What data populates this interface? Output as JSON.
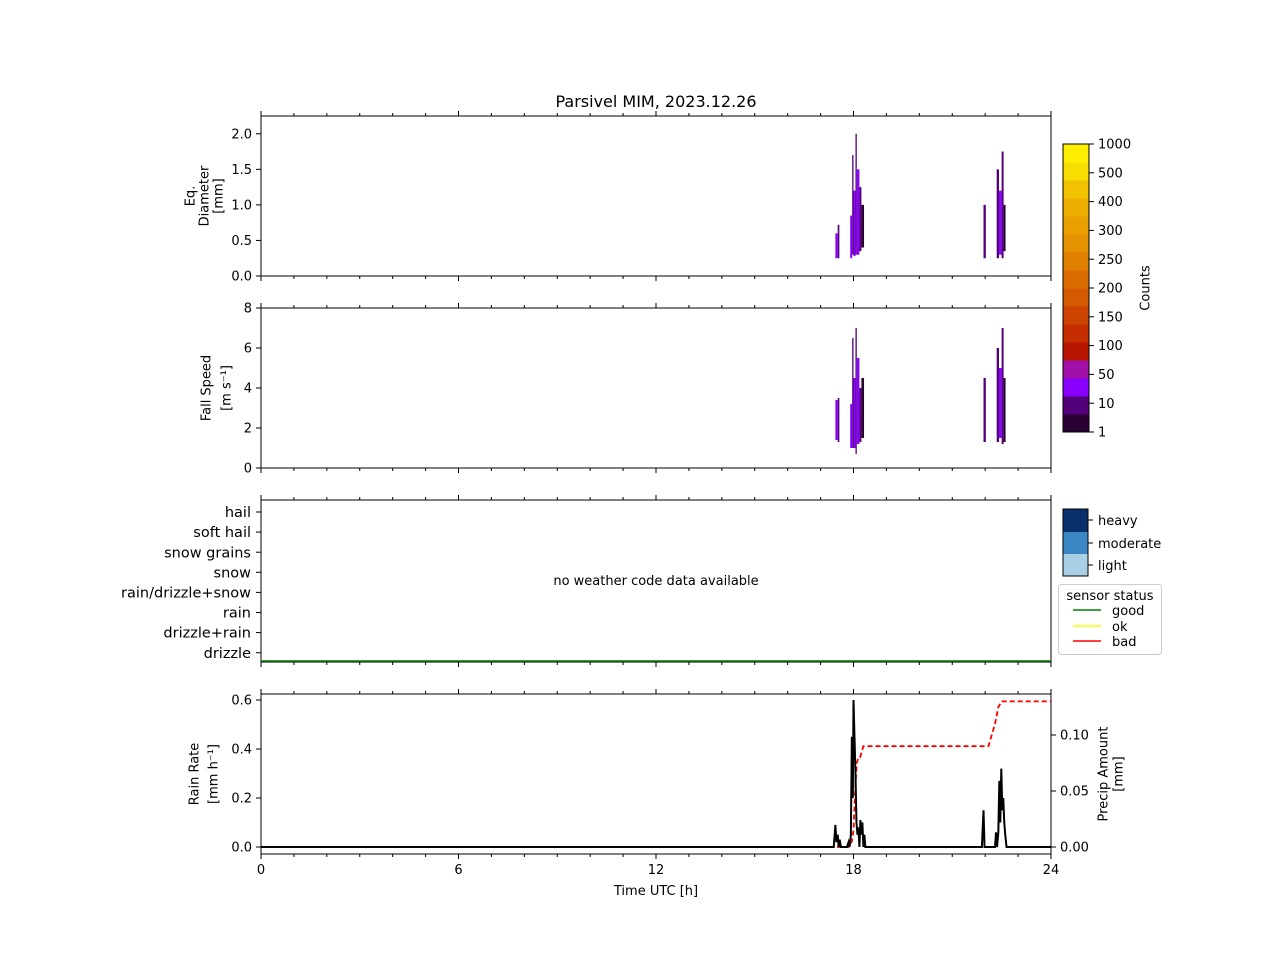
{
  "title": "Parsivel MIM, 2023.12.26",
  "xlabel": "Time UTC [h]",
  "colorbar": {
    "label": "Counts",
    "ticks": [
      "1",
      "10",
      "50",
      "100",
      "150",
      "200",
      "250",
      "300",
      "400",
      "500",
      "1000"
    ],
    "colors": [
      "#2a0033",
      "#52007a",
      "#8a00ff",
      "#a010a8",
      "#b81500",
      "#c42e00",
      "#cc4400",
      "#d45a00",
      "#db6c00",
      "#e07f00",
      "#e59200",
      "#ea9f00",
      "#eeb000",
      "#f2c200",
      "#f8dd00",
      "#ffee00"
    ]
  },
  "diameter_panel": {
    "ylabel": [
      "Eq.",
      "Diameter",
      "[mm]"
    ],
    "yticks": [
      "0.0",
      "0.5",
      "1.0",
      "1.5",
      "2.0"
    ]
  },
  "fallspeed_panel": {
    "ylabel": [
      "Fall Speed",
      "[m s⁻¹]"
    ],
    "yticks": [
      "0",
      "2",
      "4",
      "6",
      "8"
    ]
  },
  "weather_panel": {
    "categories": [
      "hail",
      "soft hail",
      "snow grains",
      "snow",
      "rain/drizzle+snow",
      "rain",
      "drizzle+rain",
      "drizzle"
    ],
    "message": "no weather code data available",
    "intensity_legend": [
      {
        "label": "heavy",
        "color": "#08306b"
      },
      {
        "label": "moderate",
        "color": "#3a87c4"
      },
      {
        "label": "light",
        "color": "#a8cfe4"
      }
    ],
    "sensor_legend": {
      "title": "sensor status",
      "items": [
        {
          "label": "good",
          "color": "#008000"
        },
        {
          "label": "ok",
          "color": "#ffff00"
        },
        {
          "label": "bad",
          "color": "#ff0000"
        }
      ]
    }
  },
  "rain_panel": {
    "ylabel_left": [
      "Rain Rate",
      "[mm h⁻¹]"
    ],
    "ylabel_right": [
      "Precip Amount",
      "[mm]"
    ],
    "yticks_left": [
      "0.0",
      "0.2",
      "0.4",
      "0.6"
    ],
    "yticks_right": [
      "0.00",
      "0.05",
      "0.10"
    ],
    "xticks": [
      "0",
      "6",
      "12",
      "18",
      "24"
    ]
  },
  "chart_data": [
    {
      "type": "heatmap",
      "name": "Eq. Diameter",
      "ylim": [
        0,
        2.25
      ],
      "xlim": [
        0,
        24
      ],
      "cells": [
        {
          "x0": 17.45,
          "x1": 17.52,
          "y0": 0.25,
          "y1": 0.6,
          "level": 2
        },
        {
          "x0": 17.52,
          "x1": 17.57,
          "y0": 0.25,
          "y1": 0.72,
          "level": 1
        },
        {
          "x0": 17.9,
          "x1": 17.96,
          "y0": 0.25,
          "y1": 0.85,
          "level": 2
        },
        {
          "x0": 17.96,
          "x1": 18.0,
          "y0": 0.3,
          "y1": 1.7,
          "level": 1
        },
        {
          "x0": 18.0,
          "x1": 18.06,
          "y0": 0.28,
          "y1": 1.2,
          "level": 2
        },
        {
          "x0": 18.06,
          "x1": 18.1,
          "y0": 0.3,
          "y1": 2.0,
          "level": 1
        },
        {
          "x0": 18.1,
          "x1": 18.18,
          "y0": 0.3,
          "y1": 1.5,
          "level": 2
        },
        {
          "x0": 18.18,
          "x1": 18.24,
          "y0": 0.35,
          "y1": 1.25,
          "level": 1
        },
        {
          "x0": 18.24,
          "x1": 18.32,
          "y0": 0.4,
          "y1": 1.0,
          "level": 0
        },
        {
          "x0": 21.95,
          "x1": 22.02,
          "y0": 0.25,
          "y1": 1.0,
          "level": 1
        },
        {
          "x0": 22.35,
          "x1": 22.42,
          "y0": 0.25,
          "y1": 1.5,
          "level": 1
        },
        {
          "x0": 22.42,
          "x1": 22.5,
          "y0": 0.3,
          "y1": 1.2,
          "level": 2
        },
        {
          "x0": 22.5,
          "x1": 22.56,
          "y0": 0.25,
          "y1": 1.75,
          "level": 1
        },
        {
          "x0": 22.56,
          "x1": 22.62,
          "y0": 0.35,
          "y1": 1.0,
          "level": 0
        }
      ]
    },
    {
      "type": "heatmap",
      "name": "Fall Speed",
      "ylim": [
        0,
        8
      ],
      "xlim": [
        0,
        24
      ],
      "cells": [
        {
          "x0": 17.45,
          "x1": 17.52,
          "y0": 1.4,
          "y1": 3.4,
          "level": 2
        },
        {
          "x0": 17.52,
          "x1": 17.57,
          "y0": 1.3,
          "y1": 3.5,
          "level": 1
        },
        {
          "x0": 17.9,
          "x1": 17.96,
          "y0": 1.0,
          "y1": 3.2,
          "level": 2
        },
        {
          "x0": 17.96,
          "x1": 18.0,
          "y0": 1.0,
          "y1": 6.5,
          "level": 1
        },
        {
          "x0": 18.0,
          "x1": 18.06,
          "y0": 1.0,
          "y1": 4.5,
          "level": 2
        },
        {
          "x0": 18.06,
          "x1": 18.1,
          "y0": 0.7,
          "y1": 7.0,
          "level": 1
        },
        {
          "x0": 18.1,
          "x1": 18.18,
          "y0": 1.2,
          "y1": 5.5,
          "level": 2
        },
        {
          "x0": 18.18,
          "x1": 18.24,
          "y0": 1.3,
          "y1": 4.0,
          "level": 1
        },
        {
          "x0": 18.24,
          "x1": 18.32,
          "y0": 1.5,
          "y1": 4.5,
          "level": 0
        },
        {
          "x0": 21.95,
          "x1": 22.02,
          "y0": 1.3,
          "y1": 4.5,
          "level": 1
        },
        {
          "x0": 22.35,
          "x1": 22.42,
          "y0": 1.3,
          "y1": 6.0,
          "level": 1
        },
        {
          "x0": 22.42,
          "x1": 22.5,
          "y0": 1.5,
          "y1": 5.0,
          "level": 2
        },
        {
          "x0": 22.5,
          "x1": 22.56,
          "y0": 1.2,
          "y1": 7.0,
          "level": 1
        },
        {
          "x0": 22.56,
          "x1": 22.62,
          "y0": 1.3,
          "y1": 4.5,
          "level": 0
        }
      ]
    },
    {
      "type": "line",
      "name": "Weather code",
      "series": [
        {
          "name": "good",
          "x": [
            0,
            24
          ],
          "y": [
            0,
            0
          ]
        }
      ]
    },
    {
      "type": "line",
      "name": "Rain rate and precip amount",
      "xlim": [
        0,
        24
      ],
      "ylim_left": [
        0,
        0.62
      ],
      "ylim_right": [
        0,
        0.13
      ],
      "series": [
        {
          "axis": "left",
          "style": "solid",
          "color": "#000000",
          "x": [
            0,
            17.4,
            17.45,
            17.48,
            17.52,
            17.55,
            17.58,
            17.62,
            17.7,
            17.8,
            17.85,
            17.88,
            17.92,
            17.95,
            17.98,
            18.0,
            18.03,
            18.06,
            18.09,
            18.12,
            18.15,
            18.18,
            18.21,
            18.24,
            18.27,
            18.3,
            18.33,
            18.36,
            18.4,
            21.9,
            21.95,
            21.98,
            22.02,
            22.3,
            22.33,
            22.36,
            22.4,
            22.43,
            22.46,
            22.49,
            22.52,
            22.55,
            22.58,
            22.61,
            22.65,
            24
          ],
          "y": [
            0,
            0,
            0.09,
            0.02,
            0.05,
            0.0,
            0.03,
            0.0,
            0.0,
            0.0,
            0.02,
            0.0,
            0.05,
            0.45,
            0.2,
            0.6,
            0.45,
            0.3,
            0.1,
            0.05,
            0.08,
            0.0,
            0.11,
            0.05,
            0.1,
            0.0,
            0.05,
            0.0,
            0.0,
            0.0,
            0.15,
            0.0,
            0.0,
            0.0,
            0.06,
            0.0,
            0.06,
            0.27,
            0.1,
            0.32,
            0.15,
            0.2,
            0.1,
            0.05,
            0.0,
            0.0
          ]
        },
        {
          "axis": "right",
          "style": "dashed",
          "color": "#ff0000",
          "x": [
            0,
            17.85,
            17.95,
            18.0,
            18.05,
            18.1,
            18.15,
            18.2,
            18.25,
            18.3,
            22.1,
            22.2,
            22.3,
            22.4,
            22.5,
            24
          ],
          "y": [
            0,
            0,
            0.005,
            0.015,
            0.05,
            0.075,
            0.08,
            0.08,
            0.085,
            0.09,
            0.09,
            0.1,
            0.11,
            0.125,
            0.13,
            0.13
          ]
        }
      ]
    }
  ]
}
